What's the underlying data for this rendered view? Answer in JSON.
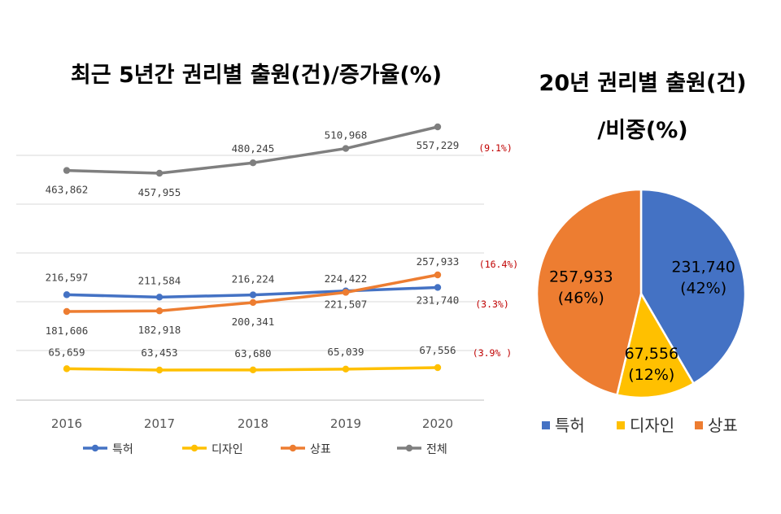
{
  "chart_data": [
    {
      "type": "line",
      "title": "최근 5년간 권리별 출원(건)/증가율(%)",
      "categories": [
        "2016",
        "2017",
        "2018",
        "2019",
        "2020"
      ],
      "series": [
        {
          "name": "특허",
          "color": "#4472c4",
          "values": [
            216597,
            211584,
            216224,
            224422,
            231740
          ],
          "labels": [
            "216,597",
            "211,584",
            "216,224",
            "224,422",
            "231,740"
          ],
          "growth": "(3.3%)"
        },
        {
          "name": "디자인",
          "color": "#ffc000",
          "values": [
            65659,
            63453,
            63680,
            65039,
            67556
          ],
          "labels": [
            "65,659",
            "63,453",
            "63,680",
            "65,039",
            "67,556"
          ],
          "growth": "(3.9% )"
        },
        {
          "name": "상표",
          "color": "#ed7d31",
          "values": [
            181606,
            182918,
            200341,
            221507,
            257933
          ],
          "labels": [
            "181,606",
            "182,918",
            "200,341",
            "221,507",
            "257,933"
          ],
          "growth": "(16.4%)"
        },
        {
          "name": "전체",
          "color": "#7f7f7f",
          "values": [
            463862,
            457955,
            480245,
            510968,
            557229
          ],
          "labels": [
            "463,862",
            "457,955",
            "480,245",
            "510,968",
            "557,229"
          ],
          "growth": "(9.1%)"
        }
      ],
      "grid": true,
      "legend_position": "bottom"
    },
    {
      "type": "pie",
      "title_line1": "20년 권리별 출원(건)",
      "title_line2": "/비중(%)",
      "slices": [
        {
          "name": "특허",
          "value": 231740,
          "value_label": "231,740",
          "percent_label": "(42%)",
          "color": "#4472c4"
        },
        {
          "name": "디자인",
          "value": 67556,
          "value_label": "67,556",
          "percent_label": "(12%)",
          "color": "#ffc000"
        },
        {
          "name": "상표",
          "value": 257933,
          "value_label": "257,933",
          "percent_label": "(46%)",
          "color": "#ed7d31"
        }
      ],
      "legend_position": "bottom"
    }
  ]
}
